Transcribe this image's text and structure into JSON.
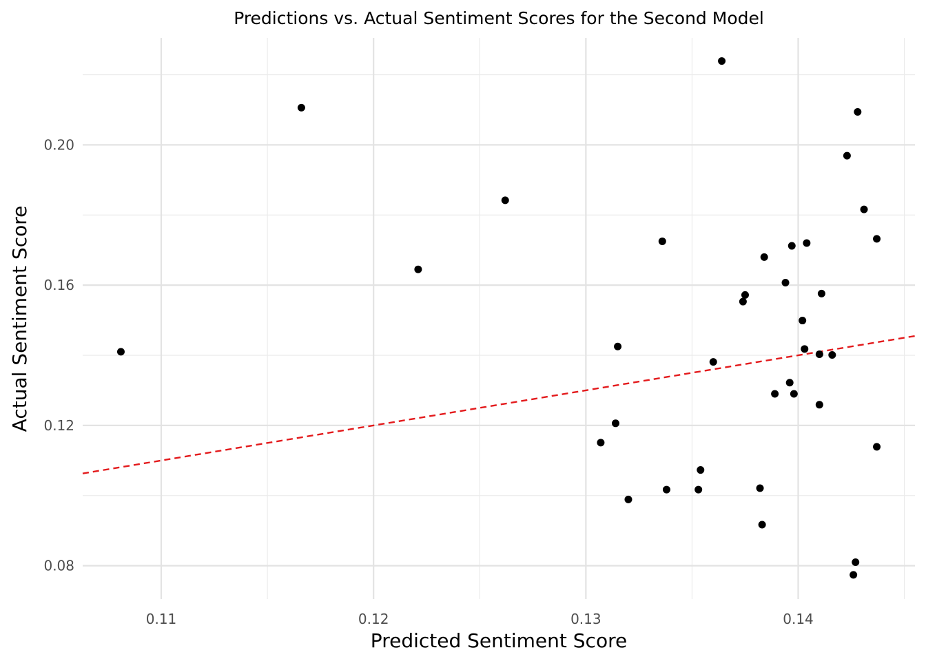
{
  "chart_data": {
    "type": "scatter",
    "title": "Predictions vs. Actual Sentiment Scores for the Second Model",
    "xlabel": "Predicted Sentiment Score",
    "ylabel": "Actual Sentiment Score",
    "xlim": [
      0.1063,
      0.1455
    ],
    "ylim": [
      0.0705,
      0.2305
    ],
    "x_ticks": [
      0.11,
      0.12,
      0.13,
      0.14
    ],
    "x_tick_labels": [
      "0.11",
      "0.12",
      "0.13",
      "0.14"
    ],
    "y_ticks": [
      0.08,
      0.12,
      0.16,
      0.2
    ],
    "y_tick_labels": [
      "0.08",
      "0.12",
      "0.16",
      "0.20"
    ],
    "grid": true,
    "point_color": "#000000",
    "reference_line": {
      "style": "dashed",
      "color": "#e31a1c",
      "slope": 1,
      "intercept": 0
    },
    "points": [
      {
        "x": 0.1081,
        "y": 0.141
      },
      {
        "x": 0.1166,
        "y": 0.2106
      },
      {
        "x": 0.1221,
        "y": 0.1645
      },
      {
        "x": 0.1262,
        "y": 0.1842
      },
      {
        "x": 0.1307,
        "y": 0.1151
      },
      {
        "x": 0.1314,
        "y": 0.1206
      },
      {
        "x": 0.1315,
        "y": 0.1425
      },
      {
        "x": 0.132,
        "y": 0.0989
      },
      {
        "x": 0.1336,
        "y": 0.1725
      },
      {
        "x": 0.1338,
        "y": 0.1017
      },
      {
        "x": 0.1353,
        "y": 0.1017
      },
      {
        "x": 0.1354,
        "y": 0.1073
      },
      {
        "x": 0.136,
        "y": 0.1381
      },
      {
        "x": 0.1364,
        "y": 0.2239
      },
      {
        "x": 0.1374,
        "y": 0.1553
      },
      {
        "x": 0.1375,
        "y": 0.1572
      },
      {
        "x": 0.1382,
        "y": 0.1021
      },
      {
        "x": 0.1383,
        "y": 0.0917
      },
      {
        "x": 0.1384,
        "y": 0.168
      },
      {
        "x": 0.1389,
        "y": 0.129
      },
      {
        "x": 0.1394,
        "y": 0.1607
      },
      {
        "x": 0.1396,
        "y": 0.1322
      },
      {
        "x": 0.1397,
        "y": 0.1712
      },
      {
        "x": 0.1398,
        "y": 0.129
      },
      {
        "x": 0.1402,
        "y": 0.1499
      },
      {
        "x": 0.1403,
        "y": 0.1418
      },
      {
        "x": 0.1404,
        "y": 0.172
      },
      {
        "x": 0.141,
        "y": 0.1403
      },
      {
        "x": 0.141,
        "y": 0.1259
      },
      {
        "x": 0.1411,
        "y": 0.1576
      },
      {
        "x": 0.1416,
        "y": 0.1401
      },
      {
        "x": 0.1423,
        "y": 0.1969
      },
      {
        "x": 0.1426,
        "y": 0.0774
      },
      {
        "x": 0.1427,
        "y": 0.081
      },
      {
        "x": 0.1428,
        "y": 0.2094
      },
      {
        "x": 0.1431,
        "y": 0.1816
      },
      {
        "x": 0.1437,
        "y": 0.1732
      },
      {
        "x": 0.1437,
        "y": 0.1139
      }
    ]
  }
}
